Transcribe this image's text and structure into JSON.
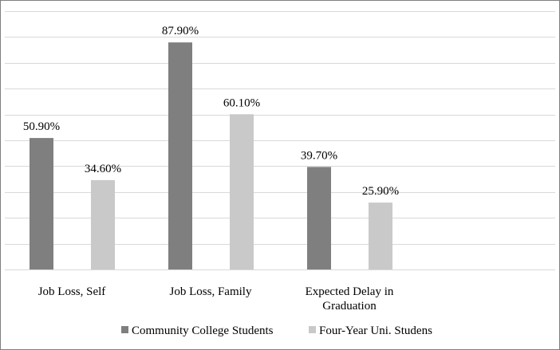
{
  "chart_data": {
    "type": "bar",
    "title": "",
    "xlabel": "",
    "ylabel": "",
    "ylim": [
      0,
      100
    ],
    "grid": true,
    "legend_position": "bottom",
    "categories": [
      [
        "Job Loss, Self"
      ],
      [
        "Job Loss, Family"
      ],
      [
        "Expected Delay in",
        "Graduation"
      ]
    ],
    "series": [
      {
        "name": "Community College Students",
        "color": "#7f7f7f",
        "values": [
          50.9,
          87.9,
          39.7
        ],
        "labels": [
          "50.90%",
          "87.90%",
          "39.70%"
        ]
      },
      {
        "name": "Four-Year Uni. Studens",
        "color": "#c9c9c9",
        "values": [
          34.6,
          60.1,
          25.9
        ],
        "labels": [
          "34.60%",
          "60.10%",
          "25.90%"
        ]
      }
    ]
  }
}
